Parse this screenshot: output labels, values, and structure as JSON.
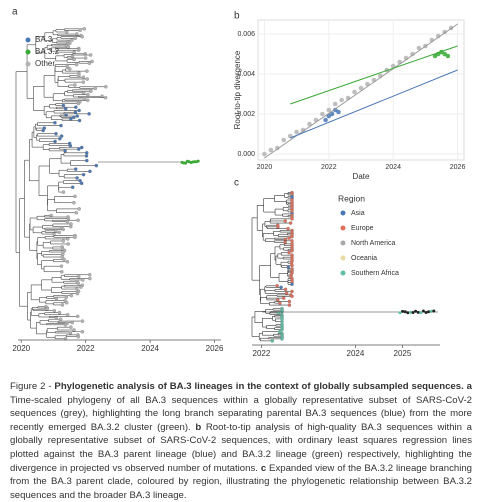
{
  "panel_a": {
    "label": "a",
    "xlim": [
      2019.9,
      2026.2
    ],
    "xticks": [
      2020,
      2022,
      2024,
      2026
    ],
    "legend": [
      {
        "name": "BA.3",
        "color": "#4a78b5"
      },
      {
        "name": "BA.3.2",
        "color": "#3aa935"
      },
      {
        "name": "Other",
        "color": "#b3b3b3"
      }
    ]
  },
  "panel_b": {
    "label": "b",
    "type": "scatter",
    "xlabel": "Date",
    "ylabel": "Root-to-tip divergence",
    "xlim": [
      2019.8,
      2026.2
    ],
    "ylim": [
      -0.0003,
      0.0067
    ],
    "xticks": [
      2020,
      2022,
      2024,
      2026
    ],
    "yticks": [
      {
        "value": 0,
        "label": "0.000"
      },
      {
        "value": 0.002,
        "label": "0.002"
      },
      {
        "value": 0.004,
        "label": "0.004"
      },
      {
        "value": 0.006,
        "label": "0.006"
      }
    ],
    "series": [
      {
        "color": "#b3b3b3",
        "x": [
          2020.0,
          2020.2,
          2020.4,
          2020.6,
          2020.8,
          2021.0,
          2021.2,
          2021.4,
          2021.6,
          2021.8,
          2022.0,
          2022.2,
          2022.4,
          2022.6,
          2022.8,
          2023.0,
          2023.2,
          2023.4,
          2023.6,
          2023.8,
          2024.0,
          2024.2,
          2024.4,
          2024.6,
          2024.8,
          2025.0,
          2025.2,
          2025.4,
          2025.6,
          2025.8
        ],
        "values": [
          0.0,
          0.0002,
          0.0003,
          0.0007,
          0.0009,
          0.0011,
          0.0012,
          0.0015,
          0.0017,
          0.002,
          0.0022,
          0.0025,
          0.0027,
          0.0028,
          0.0031,
          0.0033,
          0.0035,
          0.0037,
          0.0039,
          0.0042,
          0.0044,
          0.0046,
          0.0048,
          0.005,
          0.0053,
          0.0054,
          0.0057,
          0.0059,
          0.0061,
          0.0063
        ]
      },
      {
        "color": "#4a78b5",
        "x": [
          2021.9,
          2022.0,
          2022.1,
          2022.2,
          2022.3
        ],
        "values": [
          0.0017,
          0.0019,
          0.002,
          0.0022,
          0.0021
        ]
      },
      {
        "color": "#3aa935",
        "x": [
          2025.3,
          2025.4,
          2025.5,
          2025.6,
          2025.7
        ],
        "values": [
          0.0049,
          0.005,
          0.0051,
          0.005,
          0.0049
        ]
      }
    ],
    "lines": [
      {
        "color": "#9a9a9a",
        "x": [
          2020.0,
          2026.0
        ],
        "values": [
          -0.0002,
          0.0065
        ]
      },
      {
        "color": "#4a78b5",
        "x": [
          2020.8,
          2026.0
        ],
        "values": [
          0.0008,
          0.0042
        ]
      },
      {
        "color": "#3aa935",
        "x": [
          2020.8,
          2026.0
        ],
        "values": [
          0.0025,
          0.0054
        ]
      }
    ]
  },
  "panel_c": {
    "label": "c",
    "xlim": [
      2021.8,
      2025.8
    ],
    "xticks": [
      2022,
      2024,
      2025
    ],
    "legend_title": "Region",
    "legend": [
      {
        "name": "Asia",
        "color": "#4a78b5"
      },
      {
        "name": "Europe",
        "color": "#e0705c"
      },
      {
        "name": "North America",
        "color": "#a9a9a9"
      },
      {
        "name": "Oceania",
        "color": "#e9dca4"
      },
      {
        "name": "Southern Africa",
        "color": "#5fbfa8"
      }
    ]
  },
  "caption": [
    {
      "text": "Figure 2 - "
    },
    {
      "text": "Phylogenetic analysis of BA.3 lineages in the context of globally subsampled sequences.",
      "bold": true
    },
    {
      "text": " a",
      "bold": true
    },
    {
      "text": " Time-scaled phylogeny of all BA.3 sequences within a globally representative subset of SARS-CoV-2 sequences (grey), highlighting the long branch separating parental BA.3 sequences (blue) from the more recently emerged BA.3.2 cluster (green). "
    },
    {
      "text": "b",
      "bold": true
    },
    {
      "text": " Root-to-tip analysis of high-quality BA.3 sequences within a globally representative subset of SARS-CoV-2 sequences, with ordinary least squares regression lines plotted against the BA.3 parent lineage (blue) and BA.3.2 lineage (green) respectively, highlighting the divergence in projected vs observed number of mutations. "
    },
    {
      "text": "c",
      "bold": true
    },
    {
      "text": " Expanded view of the BA.3.2 lineage branching from the BA.3 parent clade, coloured by region, illustrating the phylogenetic relationship between BA.3.2 sequences and the broader BA.3 lineage."
    }
  ]
}
